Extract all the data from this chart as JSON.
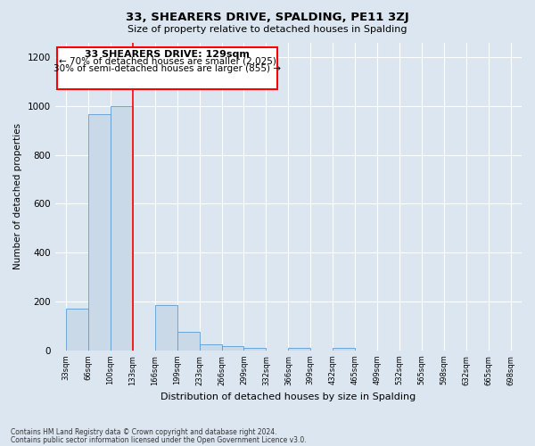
{
  "title": "33, SHEARERS DRIVE, SPALDING, PE11 3ZJ",
  "subtitle": "Size of property relative to detached houses in Spalding",
  "xlabel": "Distribution of detached houses by size in Spalding",
  "ylabel": "Number of detached properties",
  "bar_color": "#c9d9e8",
  "bar_edge_color": "#5b9bd5",
  "background_color": "#dce6f0",
  "plot_bg_color": "#dce6f0",
  "categories": [
    "33sqm",
    "66sqm",
    "100sqm",
    "133sqm",
    "166sqm",
    "199sqm",
    "233sqm",
    "266sqm",
    "299sqm",
    "332sqm",
    "366sqm",
    "399sqm",
    "432sqm",
    "465sqm",
    "499sqm",
    "532sqm",
    "565sqm",
    "598sqm",
    "632sqm",
    "665sqm",
    "698sqm"
  ],
  "values": [
    170,
    965,
    1000,
    0,
    185,
    75,
    25,
    18,
    10,
    0,
    10,
    0,
    10,
    0,
    0,
    0,
    0,
    0,
    0,
    0,
    0
  ],
  "red_line_x": 3,
  "annotation_title": "33 SHEARERS DRIVE: 129sqm",
  "annotation_line1": "← 70% of detached houses are smaller (2,025)",
  "annotation_line2": "30% of semi-detached houses are larger (855) →",
  "ylim": [
    0,
    1260
  ],
  "yticks": [
    0,
    200,
    400,
    600,
    800,
    1000,
    1200
  ],
  "footnote1": "Contains HM Land Registry data © Crown copyright and database right 2024.",
  "footnote2": "Contains public sector information licensed under the Open Government Licence v3.0."
}
